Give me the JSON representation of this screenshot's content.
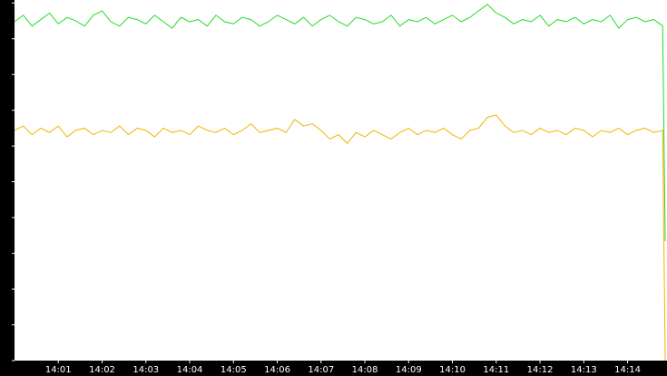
{
  "chart_data": {
    "type": "line",
    "x": [
      0,
      0.2,
      0.4,
      0.6,
      0.8,
      1,
      1.2,
      1.4,
      1.6,
      1.8,
      2,
      2.2,
      2.4,
      2.6,
      2.8,
      3,
      3.2,
      3.4,
      3.6,
      3.8,
      4,
      4.2,
      4.4,
      4.6,
      4.8,
      5,
      5.2,
      5.4,
      5.6,
      5.8,
      6,
      6.2,
      6.4,
      6.6,
      6.8,
      7,
      7.2,
      7.4,
      7.6,
      7.8,
      8,
      8.2,
      8.4,
      8.6,
      8.8,
      9,
      9.2,
      9.4,
      9.6,
      9.8,
      10,
      10.2,
      10.4,
      10.6,
      10.8,
      11,
      11.2,
      11.4,
      11.6,
      11.8,
      12,
      12.2,
      12.4,
      12.6,
      12.8,
      13,
      13.2,
      13.4,
      13.6,
      13.8,
      14,
      14.2,
      14.4,
      14.6,
      14.8,
      14.86
    ],
    "series": [
      {
        "color": "#22dd22",
        "values": [
          7800,
          7950,
          7700,
          7850,
          8000,
          7750,
          7900,
          7820,
          7700,
          7950,
          8050,
          7800,
          7700,
          7900,
          7850,
          7750,
          7950,
          7800,
          7650,
          7900,
          7800,
          7850,
          7700,
          7950,
          7800,
          7750,
          7900,
          7850,
          7700,
          7800,
          7950,
          7850,
          7750,
          7900,
          7700,
          7850,
          7950,
          7800,
          7700,
          7900,
          7850,
          7750,
          7800,
          7950,
          7700,
          7850,
          7800,
          7900,
          7750,
          7850,
          7950,
          7800,
          7900,
          8050,
          8200,
          8000,
          7900,
          7750,
          7850,
          7800,
          7950,
          7700,
          7850,
          7800,
          7900,
          7750,
          7850,
          7800,
          7950,
          7650,
          7850,
          7900,
          7800,
          7850,
          7700,
          2750
        ]
      },
      {
        "color": "#f0b400",
        "values": [
          5300,
          5400,
          5200,
          5350,
          5250,
          5400,
          5150,
          5300,
          5350,
          5200,
          5300,
          5250,
          5400,
          5200,
          5350,
          5300,
          5150,
          5350,
          5250,
          5300,
          5200,
          5400,
          5300,
          5250,
          5350,
          5200,
          5300,
          5450,
          5250,
          5300,
          5350,
          5250,
          5550,
          5400,
          5450,
          5300,
          5100,
          5200,
          5000,
          5250,
          5150,
          5300,
          5200,
          5100,
          5250,
          5350,
          5200,
          5300,
          5250,
          5350,
          5200,
          5100,
          5300,
          5350,
          5600,
          5650,
          5400,
          5250,
          5300,
          5200,
          5350,
          5250,
          5300,
          5200,
          5350,
          5300,
          5150,
          5300,
          5250,
          5350,
          5200,
          5300,
          5350,
          5250,
          5300,
          0
        ]
      }
    ],
    "xlim": [
      0,
      14.9
    ],
    "ylim": [
      0,
      8300
    ],
    "xticks": [
      {
        "value": 1,
        "label": "14:01"
      },
      {
        "value": 2,
        "label": "14:02"
      },
      {
        "value": 3,
        "label": "14:03"
      },
      {
        "value": 4,
        "label": "14:04"
      },
      {
        "value": 5,
        "label": "14:05"
      },
      {
        "value": 6,
        "label": "14:06"
      },
      {
        "value": 7,
        "label": "14:07"
      },
      {
        "value": 8,
        "label": "14:08"
      },
      {
        "value": 9,
        "label": "14:09"
      },
      {
        "value": 10,
        "label": "14:10"
      },
      {
        "value": 11,
        "label": "14:11"
      },
      {
        "value": 12,
        "label": "14:12"
      },
      {
        "value": 13,
        "label": "14:13"
      },
      {
        "value": 14,
        "label": "14:14"
      }
    ],
    "yticks": [
      0,
      823,
      1646,
      2469,
      3292,
      4116,
      4939,
      5762,
      6585,
      7408,
      8232
    ]
  }
}
